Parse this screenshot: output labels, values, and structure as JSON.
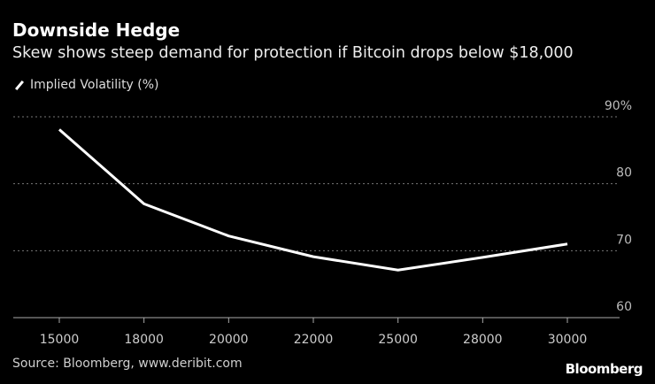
{
  "title": "Downside Hedge",
  "subtitle": "Skew shows steep demand for protection if Bitcoin drops below $18,000",
  "source": "Source: Bloomberg, www.deribit.com",
  "logo": "Bloomberg",
  "chart_data": {
    "type": "line",
    "categories": [
      "15000",
      "18000",
      "20000",
      "22000",
      "25000",
      "28000",
      "30000"
    ],
    "series": [
      {
        "name": "Implied Volatility (%)",
        "values": [
          88.1,
          77.0,
          72.2,
          69.1,
          67.1,
          69.0,
          71.0
        ],
        "color": "#ffffff"
      }
    ],
    "ylim": [
      60,
      90
    ],
    "yticks": [
      60,
      70,
      80,
      90
    ],
    "ytick_labels": [
      "60",
      "70",
      "80",
      "90%"
    ],
    "grid": true,
    "legend": "top-left",
    "background": "#000000"
  }
}
